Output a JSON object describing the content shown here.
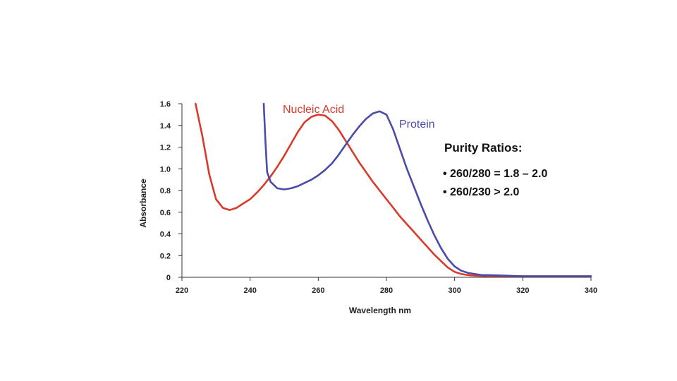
{
  "chart_data": {
    "type": "line",
    "xlabel": "Wavelength nm",
    "ylabel": "Absorbance",
    "xlim": [
      220,
      340
    ],
    "ylim": [
      0,
      1.6
    ],
    "x_ticks": [
      "220",
      "240",
      "260",
      "280",
      "300",
      "320",
      "340"
    ],
    "y_ticks": [
      "0",
      "0.2",
      "0.4",
      "0.6",
      "0.8",
      "1.0",
      "1.2",
      "1.4",
      "1.6"
    ],
    "grid": false,
    "series": [
      {
        "name": "Nucleic Acid",
        "color": "#d93a2b",
        "x": [
          224,
          226,
          228,
          230,
          232,
          234,
          236,
          238,
          240,
          242,
          244,
          246,
          248,
          250,
          252,
          254,
          256,
          258,
          260,
          262,
          264,
          266,
          268,
          270,
          272,
          274,
          276,
          278,
          280,
          282,
          284,
          286,
          288,
          290,
          292,
          294,
          296,
          298,
          300,
          302,
          304,
          306,
          310,
          320,
          330,
          340
        ],
        "y": [
          1.6,
          1.3,
          0.95,
          0.72,
          0.64,
          0.62,
          0.64,
          0.68,
          0.72,
          0.78,
          0.85,
          0.93,
          1.02,
          1.12,
          1.23,
          1.34,
          1.43,
          1.48,
          1.5,
          1.49,
          1.44,
          1.36,
          1.26,
          1.16,
          1.06,
          0.97,
          0.88,
          0.8,
          0.72,
          0.64,
          0.56,
          0.49,
          0.42,
          0.35,
          0.28,
          0.21,
          0.15,
          0.09,
          0.05,
          0.03,
          0.02,
          0.015,
          0.01,
          0.01,
          0.01,
          0.01
        ]
      },
      {
        "name": "Protein",
        "color": "#4b4ba8",
        "x": [
          244,
          244.5,
          245,
          246,
          248,
          250,
          252,
          254,
          256,
          258,
          260,
          262,
          264,
          266,
          268,
          270,
          272,
          274,
          276,
          278,
          280,
          282,
          284,
          286,
          288,
          290,
          292,
          294,
          296,
          298,
          300,
          302,
          304,
          306,
          308,
          310,
          315,
          320,
          330,
          340
        ],
        "y": [
          1.6,
          1.25,
          0.97,
          0.88,
          0.82,
          0.81,
          0.82,
          0.84,
          0.87,
          0.9,
          0.94,
          0.99,
          1.05,
          1.13,
          1.22,
          1.31,
          1.39,
          1.46,
          1.51,
          1.53,
          1.5,
          1.36,
          1.18,
          1.0,
          0.84,
          0.68,
          0.53,
          0.39,
          0.27,
          0.17,
          0.1,
          0.06,
          0.04,
          0.03,
          0.02,
          0.02,
          0.015,
          0.01,
          0.01,
          0.01
        ]
      }
    ]
  },
  "labels": {
    "nucleic_acid": "Nucleic Acid",
    "protein": "Protein"
  },
  "purity": {
    "title": "Purity Ratios:",
    "items": [
      "• 260/280 = 1.8 – 2.0",
      "• 260/230 > 2.0"
    ]
  }
}
